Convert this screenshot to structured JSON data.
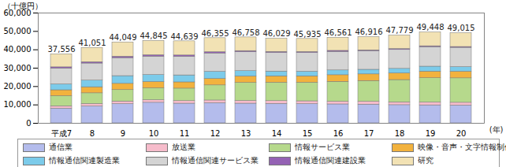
{
  "chart_data": {
    "type": "bar",
    "stacked": true,
    "grid": false,
    "legend": "bottom",
    "ylabel": "（十億円）",
    "xlabel": "(年)",
    "categories": [
      "平成7",
      "8",
      "9",
      "10",
      "11",
      "12",
      "13",
      "14",
      "15",
      "16",
      "17",
      "18",
      "19",
      "20"
    ],
    "ylim": [
      0,
      60000
    ],
    "yticks": [
      0,
      {
        "value": 10000,
        "label": "10,000"
      },
      {
        "value": 20000,
        "label": "20,000"
      },
      {
        "value": 30000,
        "label": "30,000"
      },
      {
        "value": 40000,
        "label": "40,000"
      },
      {
        "value": 50000,
        "label": "50,000"
      },
      {
        "value": 60000,
        "label": "60,000"
      }
    ],
    "totals": [
      37556,
      41051,
      44049,
      44845,
      44639,
      46355,
      46758,
      46029,
      45935,
      46561,
      46916,
      47779,
      49448,
      49015
    ],
    "total_labels": [
      "37,556",
      "41,051",
      "44,049",
      "44,845",
      "44,639",
      "46,355",
      "46,758",
      "46,029",
      "45,935",
      "46,561",
      "46,916",
      "47,779",
      "49,448",
      "49,015"
    ],
    "series": [
      {
        "name": "通信業",
        "color": "#b4bcec",
        "values": [
          8000,
          9200,
          10500,
          11200,
          10700,
          11000,
          10700,
          10600,
          10500,
          10300,
          10200,
          9900,
          9800,
          9700
        ]
      },
      {
        "name": "放送業",
        "color": "#f6bccb",
        "values": [
          1300,
          1350,
          1400,
          1400,
          1400,
          1450,
          1500,
          1500,
          1500,
          1500,
          1550,
          1550,
          1550,
          1500
        ]
      },
      {
        "name": "情報サービス業",
        "color": "#b6d98c",
        "values": [
          5500,
          5800,
          6200,
          6500,
          6800,
          8200,
          9800,
          10000,
          10100,
          10800,
          11300,
          12100,
          13200,
          13300
        ]
      },
      {
        "name": "映像・音声・文字情報制作業",
        "color": "#f2b23e",
        "values": [
          3200,
          3300,
          3400,
          3400,
          3400,
          3500,
          3500,
          3500,
          3500,
          3600,
          3600,
          3600,
          3600,
          3600
        ]
      },
      {
        "name": "情報通信関連製造業",
        "color": "#7ccbea",
        "values": [
          3200,
          3600,
          4200,
          3800,
          3800,
          3900,
          2900,
          2600,
          2500,
          2600,
          2500,
          2500,
          2700,
          2500
        ]
      },
      {
        "name": "情報通信関連サービス業",
        "color": "#d4d4d4",
        "values": [
          8600,
          9300,
          9800,
          10000,
          10100,
          10000,
          10300,
          10100,
          10200,
          10100,
          10100,
          10300,
          10600,
          10500
        ]
      },
      {
        "name": "情報通信関連建設業",
        "color": "#9462b4",
        "values": [
          700,
          750,
          800,
          800,
          750,
          700,
          650,
          600,
          550,
          550,
          500,
          500,
          500,
          450
        ]
      },
      {
        "name": "研究",
        "color": "#f2e2b4",
        "values": [
          7056,
          7751,
          7749,
          7745,
          7689,
          7605,
          7408,
          7129,
          7085,
          7111,
          7166,
          7327,
          7498,
          7465
        ]
      }
    ]
  }
}
